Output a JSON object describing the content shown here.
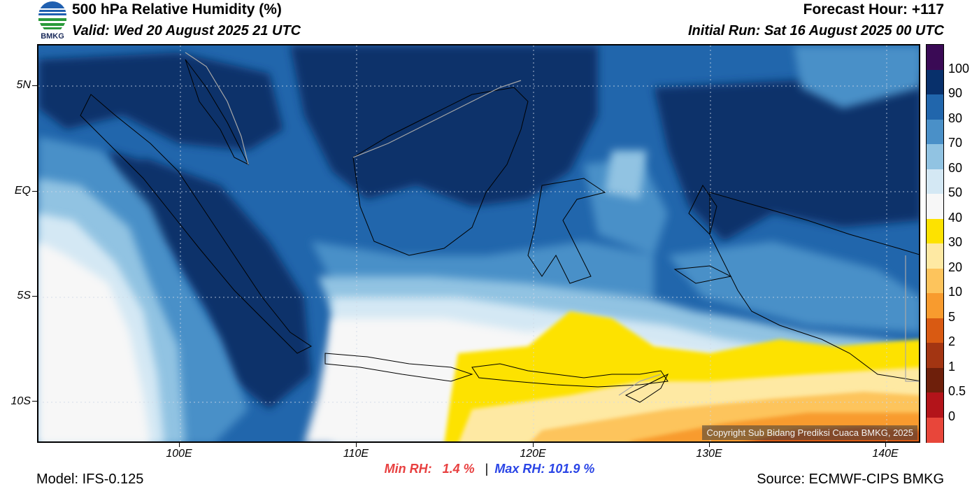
{
  "header": {
    "logo_text": "BMKG",
    "title": "500 hPa Relative Humidity (%)",
    "valid": "Valid: Wed 20 August 2025 21 UTC",
    "forecast_hour": "Forecast Hour: +117",
    "initial_run": "Initial Run: Sat 16 August 2025 00 UTC"
  },
  "map": {
    "lat_labels": [
      "5N",
      "EQ",
      "5S",
      "10S"
    ],
    "lon_labels": [
      "100E",
      "110E",
      "120E",
      "130E",
      "140E"
    ],
    "copyright": "Copyright Sub Bidang Prediksi Cuaca BMKG, 2025"
  },
  "colorbar": {
    "labels": [
      "100",
      "90",
      "80",
      "70",
      "60",
      "50",
      "40",
      "30",
      "20",
      "10",
      "5",
      "2",
      "1",
      "0.5",
      "0"
    ],
    "colors": [
      "#3a0a55",
      "#08306b",
      "#2166ac",
      "#4a90c8",
      "#91c3e2",
      "#d4e8f4",
      "#f7f7f7",
      "#fde200",
      "#fee9a3",
      "#fdc45c",
      "#f89b2e",
      "#d95a12",
      "#a33512",
      "#6e1f0b",
      "#b3141a",
      "#e8463a"
    ]
  },
  "footer": {
    "min_rh_label": "Min RH:",
    "min_rh_value": "1.4 %",
    "separator": "|",
    "max_rh_label": "Max RH:",
    "max_rh_value": "101.9 %",
    "model": "Model: IFS-0.125",
    "source": "Source: ECMWF-CIPS BMKG"
  }
}
